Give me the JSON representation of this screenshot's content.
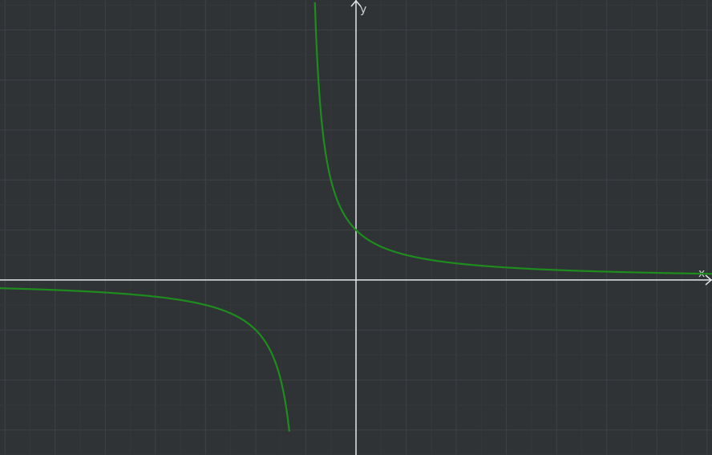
{
  "chart_data": {
    "type": "line",
    "title": "",
    "xlabel": "x",
    "ylabel": "y",
    "xlim": [
      -7.1,
      7.1
    ],
    "ylim": [
      -3.5,
      5.6
    ],
    "grid": true,
    "series": [
      {
        "color": "#1e8c1e",
        "asymptote_x": -1,
        "branches": [
          {
            "x": [
              -7.1,
              -6,
              -5,
              -4,
              -3,
              -2.5,
              -2,
              -1.8,
              -1.6,
              -1.4,
              -1.33
            ],
            "y": [
              -0.164,
              -0.2,
              -0.25,
              -0.333,
              -0.5,
              -0.667,
              -1,
              -1.25,
              -1.667,
              -2.5,
              -3.03
            ]
          },
          {
            "x": [
              -0.82,
              -0.8,
              -0.75,
              -0.7,
              -0.6,
              -0.5,
              -0.4,
              -0.2,
              0,
              0.5,
              1,
              2,
              3,
              4,
              5,
              6,
              7.1
            ],
            "y": [
              5.56,
              5,
              4,
              3.333,
              2.5,
              2,
              1.667,
              1.25,
              1,
              0.667,
              0.5,
              0.333,
              0.25,
              0.2,
              0.167,
              0.143,
              0.123
            ]
          }
        ]
      }
    ]
  },
  "colors": {
    "background": "#303336",
    "grid": "#3d4145",
    "axis": "#e6e6e6",
    "axis_label": "#d0d0d0"
  }
}
